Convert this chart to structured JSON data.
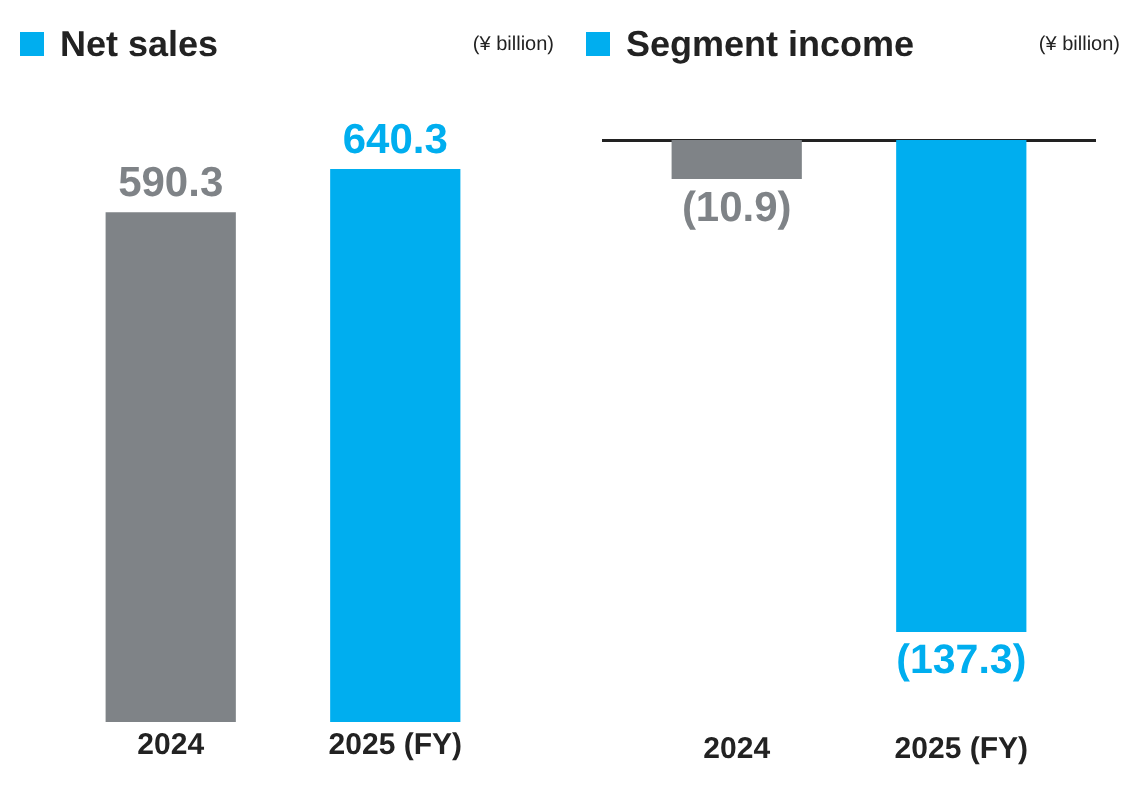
{
  "chart_data": [
    {
      "type": "bar",
      "title": "Net sales",
      "subtitle": "(¥ billion)",
      "categories": [
        "2024",
        "2025 (FY)"
      ],
      "values": [
        590.3,
        640.3
      ],
      "colors": [
        "#7f8387",
        "#00aeef"
      ],
      "data_labels": true,
      "grid": false,
      "legend": false
    },
    {
      "type": "bar",
      "title": "Segment income",
      "subtitle": "(¥ billion)",
      "categories": [
        "2024",
        "2025 (FY)"
      ],
      "values": [
        -10.9,
        -137.3
      ],
      "value_labels": [
        "(10.9)",
        "(137.3)"
      ],
      "colors": [
        "#7f8387",
        "#00aeef"
      ],
      "grid": false,
      "legend": false
    }
  ]
}
